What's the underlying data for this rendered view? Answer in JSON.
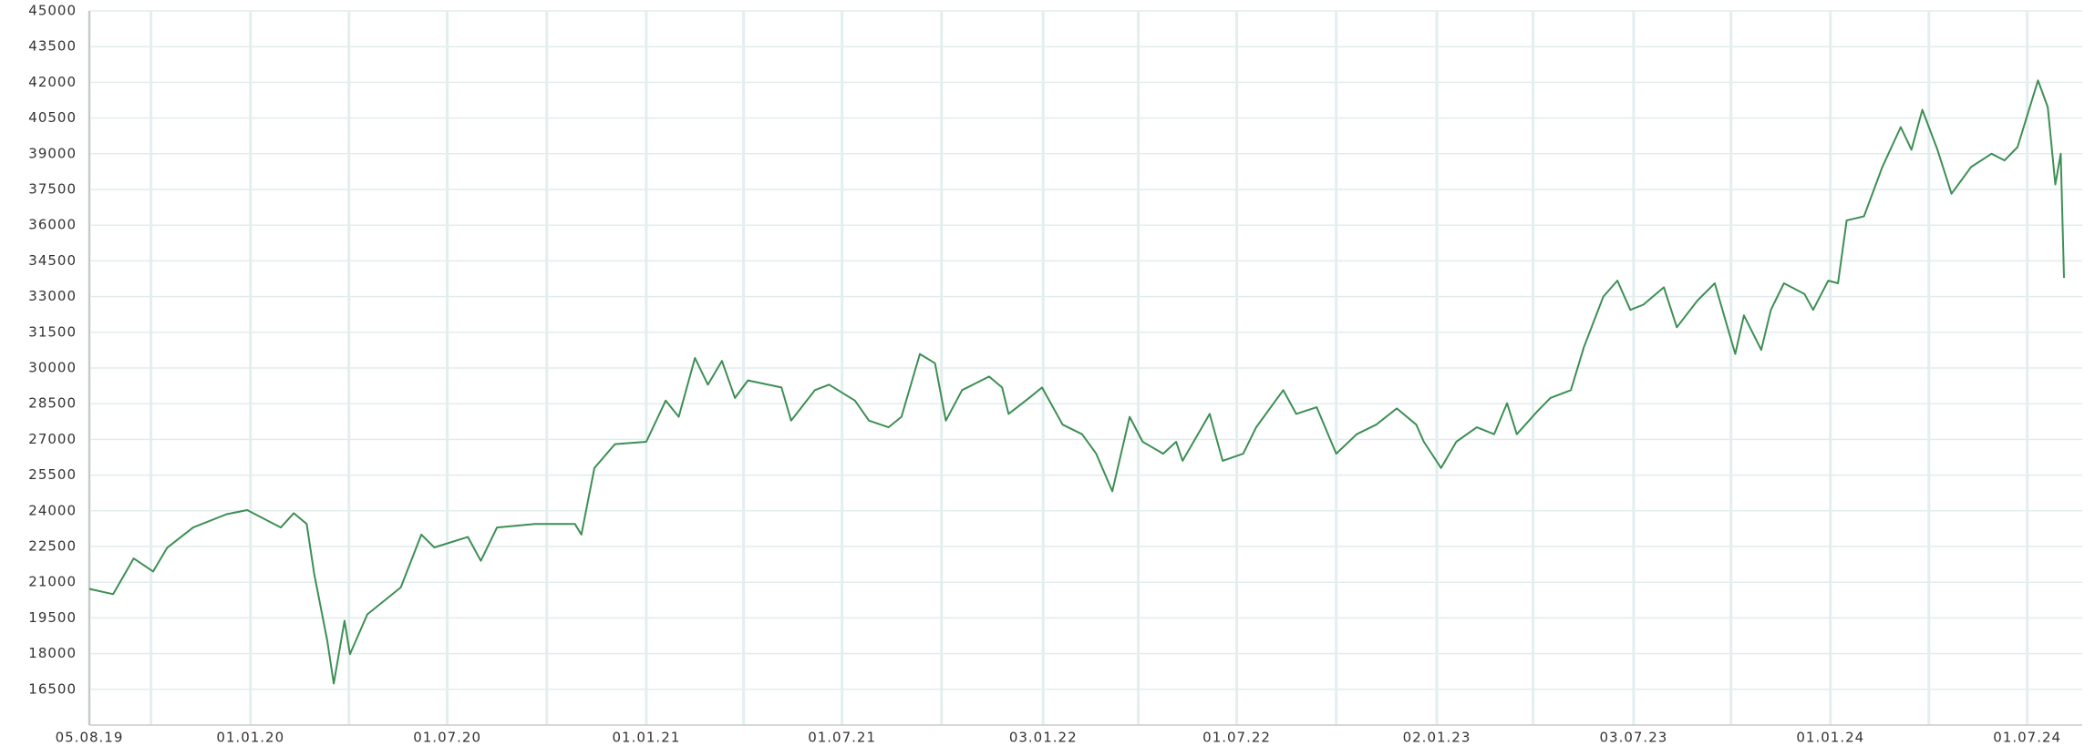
{
  "chart_data": {
    "type": "line",
    "color": "#3d8f55",
    "grid": true,
    "x": [
      "05.08.19",
      "27.08.19",
      "15.09.19",
      "03.10.19",
      "16.10.19",
      "09.11.19",
      "10.12.19",
      "29.12.19",
      "29.01.20",
      "10.02.20",
      "22.02.20",
      "29.02.20",
      "12.03.20",
      "18.03.20",
      "28.03.20",
      "02.04.20",
      "18.04.20",
      "19.05.20",
      "07.06.20",
      "19.06.20",
      "20.07.20",
      "01.08.20",
      "16.08.20",
      "20.09.20",
      "27.10.20",
      "02.11.20",
      "14.11.20",
      "03.12.20",
      "01.01.21",
      "19.01.21",
      "31.01.21",
      "15.02.21",
      "27.02.21",
      "12.03.21",
      "24.03.21",
      "05.04.21",
      "06.05.21",
      "15.05.21",
      "06.06.21",
      "19.06.21",
      "13.07.21",
      "26.07.21",
      "13.08.21",
      "25.08.21",
      "11.09.21",
      "25.09.21",
      "05.10.21",
      "20.10.21",
      "14.11.21",
      "26.11.21",
      "02.12.21",
      "21.12.21",
      "02.01.22",
      "21.01.22",
      "08.02.22",
      "21.02.22",
      "08.03.22",
      "24.03.22",
      "05.04.22",
      "24.04.22",
      "06.05.22",
      "12.05.22",
      "06.06.22",
      "18.06.22",
      "07.07.22",
      "19.07.22",
      "13.08.22",
      "25.08.22",
      "13.09.22",
      "01.10.22",
      "20.10.22",
      "07.11.22",
      "26.11.22",
      "14.12.22",
      "21.12.22",
      "06.01.23",
      "20.01.23",
      "08.02.23",
      "24.02.23",
      "08.03.23",
      "17.03.23",
      "05.04.23",
      "17.04.23",
      "06.05.23",
      "18.05.23",
      "05.06.23",
      "18.06.23",
      "30.06.23",
      "12.07.23",
      "31.07.23",
      "12.08.23",
      "31.08.23",
      "16.09.23",
      "05.10.23",
      "13.10.23",
      "29.10.23",
      "07.11.23",
      "19.11.23",
      "08.12.23",
      "16.12.23",
      "30.12.23",
      "08.01.24",
      "16.01.24",
      "01.02.24",
      "18.02.24",
      "06.03.24",
      "16.03.24",
      "26.03.24",
      "09.04.24",
      "22.04.24",
      "10.05.24",
      "29.05.24",
      "10.06.24",
      "22.06.24",
      "11.07.24",
      "20.07.24",
      "27.07.24",
      "01.08.24",
      "04.08.24"
    ],
    "values": [
      20720,
      20500,
      22000,
      21450,
      22450,
      23300,
      23860,
      24030,
      23300,
      23900,
      23450,
      21340,
      18540,
      16740,
      19380,
      17980,
      19650,
      20780,
      23000,
      22460,
      22900,
      21900,
      23300,
      23450,
      23450,
      23000,
      25800,
      26800,
      26900,
      28630,
      27950,
      30420,
      29300,
      30300,
      28740,
      29480,
      29180,
      27790,
      29070,
      29300,
      28630,
      27790,
      27510,
      27950,
      30590,
      30200,
      27790,
      29070,
      29640,
      29180,
      28070,
      28740,
      29180,
      27620,
      27220,
      26400,
      24820,
      27950,
      26900,
      26400,
      26900,
      26100,
      28070,
      26100,
      26400,
      27510,
      29070,
      28070,
      28350,
      26400,
      27220,
      27620,
      28300,
      27620,
      26900,
      25800,
      26900,
      27510,
      27220,
      28520,
      27220,
      28180,
      28740,
      29070,
      30870,
      33000,
      33670,
      32440,
      32660,
      33390,
      31710,
      32830,
      33560,
      30590,
      32210,
      30760,
      32440,
      33560,
      33110,
      32440,
      33670,
      33560,
      36200,
      36370,
      38440,
      40120,
      39170,
      40850,
      39170,
      37320,
      38440,
      39000,
      38720,
      39280,
      42080,
      40960,
      37710,
      39000,
      33790
    ],
    "xlim": [
      "05.08.19",
      "04.08.24"
    ],
    "xticks": [
      "05.08.19",
      "01.01.20",
      "01.07.20",
      "01.01.21",
      "01.07.21",
      "03.01.22",
      "01.07.22",
      "02.01.23",
      "03.07.23",
      "01.01.24",
      "01.07.24"
    ],
    "minor_xticks": [
      "01.10.19",
      "01.04.20",
      "01.10.20",
      "01.04.21",
      "01.10.21",
      "01.04.22",
      "01.10.22",
      "01.04.23",
      "01.10.23",
      "01.04.24"
    ],
    "ylim": [
      15000,
      45000
    ],
    "yticks": [
      16500,
      18000,
      19500,
      21000,
      22500,
      24000,
      25500,
      27000,
      28500,
      30000,
      31500,
      33000,
      34500,
      36000,
      37500,
      39000,
      40500,
      42000,
      43500,
      45000
    ]
  }
}
